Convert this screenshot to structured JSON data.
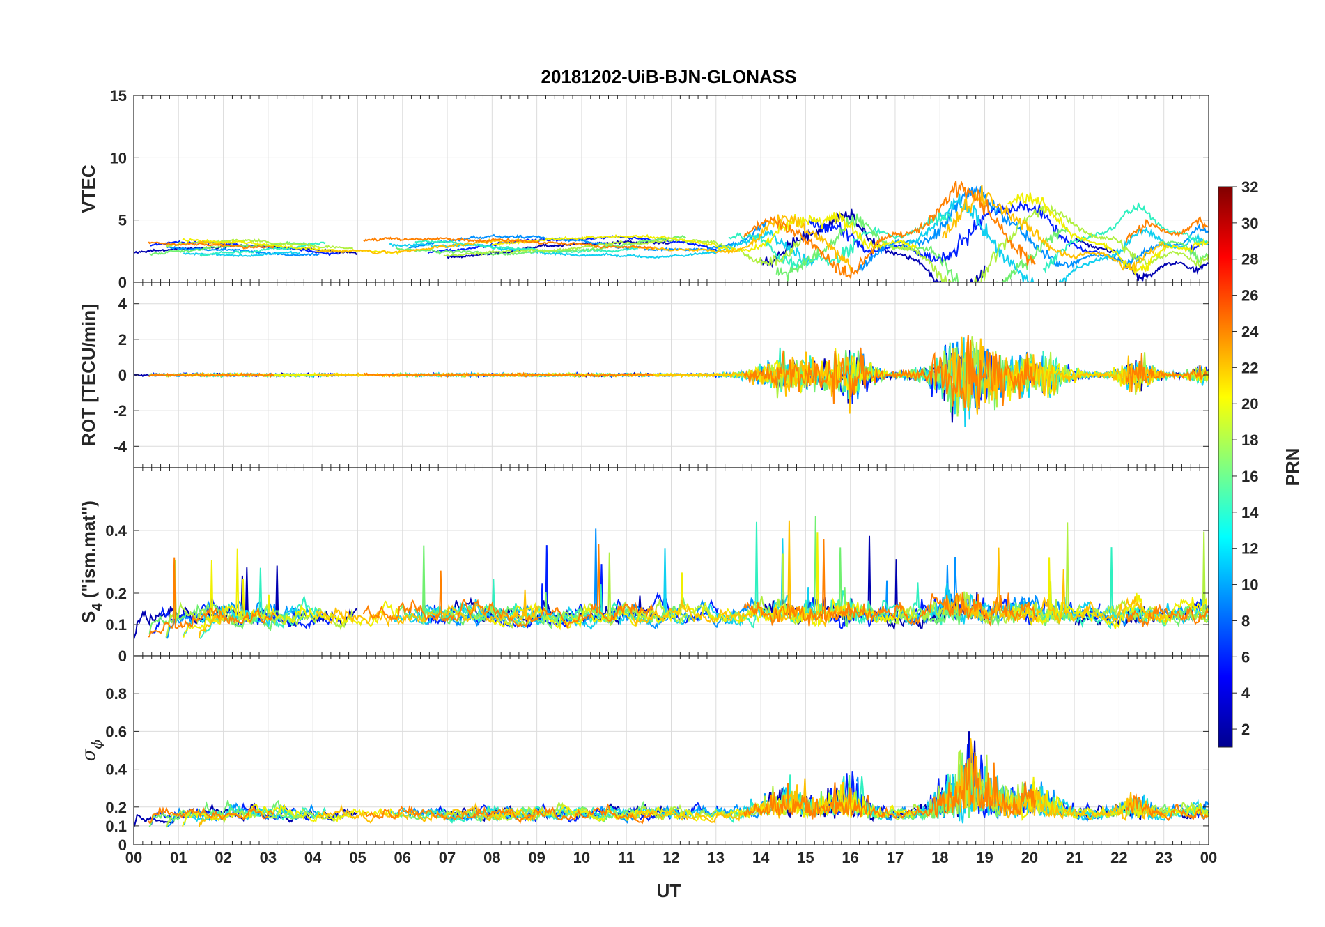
{
  "chart_data": {
    "type": "line",
    "title": "20181202-UiB-BJN-GLONASS",
    "xlabel": "UT",
    "x_ticks": [
      "00",
      "01",
      "02",
      "03",
      "04",
      "05",
      "06",
      "07",
      "08",
      "09",
      "10",
      "11",
      "12",
      "13",
      "14",
      "15",
      "16",
      "17",
      "18",
      "19",
      "20",
      "21",
      "22",
      "23",
      "00"
    ],
    "xlim": [
      0,
      24
    ],
    "grid": true,
    "panels": [
      {
        "id": "vtec",
        "ylabel": "VTEC",
        "ylim": [
          0,
          15
        ],
        "yticks": [
          0,
          5,
          10,
          15
        ]
      },
      {
        "id": "rot",
        "ylabel": "ROT [TECU/min]",
        "ylim": [
          -5.2,
          5.2
        ],
        "yticks": [
          -4,
          -2,
          0,
          2,
          4
        ]
      },
      {
        "id": "s4",
        "ylabel_main": "S",
        "ylabel_sub": "4",
        "ylabel_rest": " (\"ism.mat\")",
        "ylim": [
          0,
          0.6
        ],
        "yticks": [
          0,
          0.1,
          0.2,
          0.4
        ]
      },
      {
        "id": "sigma",
        "ylabel_main": "σ",
        "ylabel_sub": "ϕ",
        "ylim": [
          0,
          1
        ],
        "yticks": [
          0,
          0.1,
          0.2,
          0.4,
          0.6,
          0.8
        ]
      }
    ],
    "colorbar": {
      "label": "PRN",
      "range": [
        1,
        32
      ],
      "ticks": [
        2,
        4,
        6,
        8,
        10,
        12,
        14,
        16,
        18,
        20,
        22,
        24,
        26,
        28,
        30,
        32
      ],
      "colormap": "jet"
    },
    "series": [
      {
        "prn": 2,
        "color": "#0000b0"
      },
      {
        "prn": 5,
        "color": "#0020ff"
      },
      {
        "prn": 9,
        "color": "#0090ff"
      },
      {
        "prn": 11,
        "color": "#10d0f0"
      },
      {
        "prn": 13,
        "color": "#30f0c0"
      },
      {
        "prn": 15,
        "color": "#70f070"
      },
      {
        "prn": 17,
        "color": "#b0f040"
      },
      {
        "prn": 20,
        "color": "#f0f000"
      },
      {
        "prn": 21,
        "color": "#ffc000"
      },
      {
        "prn": 23,
        "color": "#ff8000"
      }
    ]
  }
}
